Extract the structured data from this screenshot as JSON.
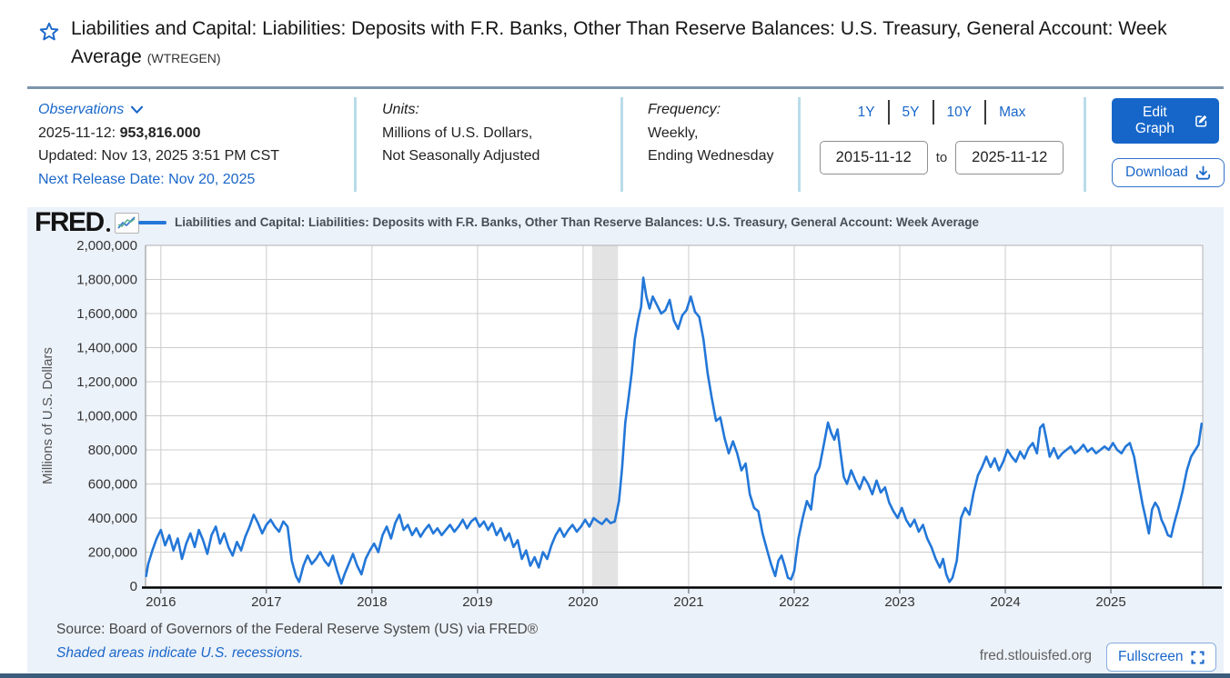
{
  "header": {
    "title": "Liabilities and Capital: Liabilities: Deposits with F.R. Banks, Other Than Reserve Balances: U.S. Treasury, General Account: Week Average",
    "series_id": "(WTREGEN)"
  },
  "meta": {
    "observations_label": "Observations",
    "latest_date": "2025-11-12:",
    "latest_value": "953,816.000",
    "updated": "Updated: Nov 13, 2025 3:51 PM CST",
    "next_release": "Next Release Date: Nov 20, 2025",
    "units_label": "Units:",
    "units_line1": "Millions of U.S. Dollars,",
    "units_line2": "Not Seasonally Adjusted",
    "frequency_label": "Frequency:",
    "frequency_line1": "Weekly,",
    "frequency_line2": "Ending Wednesday",
    "ranges": [
      "1Y",
      "5Y",
      "10Y",
      "Max"
    ],
    "date_from": "2015-11-12",
    "to_label": "to",
    "date_to": "2025-11-12",
    "edit_graph_label": "Edit Graph",
    "download_label": "Download"
  },
  "chart": {
    "brand": "FRED",
    "legend": "Liabilities and Capital: Liabilities: Deposits with F.R. Banks, Other Than Reserve Balances: U.S. Treasury, General Account: Week Average",
    "source": "Source: Board of Governors of the Federal Reserve System (US) via FRED®",
    "recession_note": "Shaded areas indicate U.S. recessions.",
    "watermark": "fred.stlouisfed.org",
    "fullscreen_label": "Fullscreen",
    "colors": {
      "accent": "#1a67c9",
      "line": "#2377d8",
      "recession_band": "#e3e3e3"
    }
  },
  "chart_data": {
    "type": "line",
    "title": "Liabilities and Capital: Liabilities: Deposits with F.R. Banks, Other Than Reserve Balances: U.S. Treasury, General Account: Week Average",
    "xlabel": "",
    "ylabel": "Millions of U.S. Dollars",
    "ylim": [
      0,
      2000000
    ],
    "xlim_years": [
      2015.855,
      2025.87
    ],
    "grid": true,
    "legend_position": "top",
    "y_ticks": [
      0,
      200000,
      400000,
      600000,
      800000,
      1000000,
      1200000,
      1400000,
      1600000,
      1800000,
      2000000
    ],
    "x_ticks": [
      2016,
      2017,
      2018,
      2019,
      2020,
      2021,
      2022,
      2023,
      2024,
      2025
    ],
    "recession_band_years": [
      2020.085,
      2020.33
    ],
    "points": [
      [
        2015.86,
        60000
      ],
      [
        2015.88,
        130000
      ],
      [
        2015.92,
        210000
      ],
      [
        2015.96,
        280000
      ],
      [
        2016.0,
        330000
      ],
      [
        2016.04,
        240000
      ],
      [
        2016.08,
        300000
      ],
      [
        2016.12,
        210000
      ],
      [
        2016.16,
        280000
      ],
      [
        2016.2,
        160000
      ],
      [
        2016.24,
        250000
      ],
      [
        2016.28,
        310000
      ],
      [
        2016.32,
        230000
      ],
      [
        2016.36,
        330000
      ],
      [
        2016.4,
        270000
      ],
      [
        2016.44,
        190000
      ],
      [
        2016.48,
        300000
      ],
      [
        2016.52,
        350000
      ],
      [
        2016.56,
        250000
      ],
      [
        2016.6,
        310000
      ],
      [
        2016.64,
        230000
      ],
      [
        2016.68,
        180000
      ],
      [
        2016.72,
        260000
      ],
      [
        2016.76,
        210000
      ],
      [
        2016.8,
        290000
      ],
      [
        2016.84,
        350000
      ],
      [
        2016.88,
        420000
      ],
      [
        2016.92,
        370000
      ],
      [
        2016.96,
        310000
      ],
      [
        2017.0,
        360000
      ],
      [
        2017.04,
        390000
      ],
      [
        2017.08,
        350000
      ],
      [
        2017.12,
        320000
      ],
      [
        2017.16,
        380000
      ],
      [
        2017.2,
        350000
      ],
      [
        2017.24,
        150000
      ],
      [
        2017.28,
        60000
      ],
      [
        2017.31,
        25000
      ],
      [
        2017.35,
        120000
      ],
      [
        2017.39,
        180000
      ],
      [
        2017.43,
        130000
      ],
      [
        2017.47,
        160000
      ],
      [
        2017.51,
        200000
      ],
      [
        2017.55,
        150000
      ],
      [
        2017.59,
        120000
      ],
      [
        2017.63,
        180000
      ],
      [
        2017.67,
        90000
      ],
      [
        2017.71,
        15000
      ],
      [
        2017.74,
        70000
      ],
      [
        2017.78,
        130000
      ],
      [
        2017.82,
        190000
      ],
      [
        2017.86,
        120000
      ],
      [
        2017.9,
        70000
      ],
      [
        2017.94,
        160000
      ],
      [
        2017.98,
        210000
      ],
      [
        2018.02,
        250000
      ],
      [
        2018.06,
        200000
      ],
      [
        2018.1,
        300000
      ],
      [
        2018.14,
        350000
      ],
      [
        2018.18,
        280000
      ],
      [
        2018.22,
        370000
      ],
      [
        2018.26,
        420000
      ],
      [
        2018.3,
        330000
      ],
      [
        2018.34,
        360000
      ],
      [
        2018.38,
        300000
      ],
      [
        2018.42,
        340000
      ],
      [
        2018.46,
        290000
      ],
      [
        2018.5,
        330000
      ],
      [
        2018.54,
        360000
      ],
      [
        2018.58,
        310000
      ],
      [
        2018.62,
        340000
      ],
      [
        2018.66,
        300000
      ],
      [
        2018.7,
        330000
      ],
      [
        2018.74,
        360000
      ],
      [
        2018.78,
        320000
      ],
      [
        2018.82,
        350000
      ],
      [
        2018.86,
        390000
      ],
      [
        2018.9,
        340000
      ],
      [
        2018.94,
        380000
      ],
      [
        2018.98,
        400000
      ],
      [
        2019.02,
        350000
      ],
      [
        2019.06,
        380000
      ],
      [
        2019.1,
        330000
      ],
      [
        2019.14,
        370000
      ],
      [
        2019.18,
        300000
      ],
      [
        2019.22,
        340000
      ],
      [
        2019.26,
        270000
      ],
      [
        2019.3,
        310000
      ],
      [
        2019.34,
        230000
      ],
      [
        2019.38,
        270000
      ],
      [
        2019.42,
        160000
      ],
      [
        2019.46,
        210000
      ],
      [
        2019.5,
        120000
      ],
      [
        2019.54,
        170000
      ],
      [
        2019.58,
        110000
      ],
      [
        2019.62,
        200000
      ],
      [
        2019.66,
        160000
      ],
      [
        2019.7,
        240000
      ],
      [
        2019.74,
        300000
      ],
      [
        2019.78,
        340000
      ],
      [
        2019.82,
        290000
      ],
      [
        2019.86,
        330000
      ],
      [
        2019.9,
        360000
      ],
      [
        2019.94,
        320000
      ],
      [
        2019.98,
        350000
      ],
      [
        2020.02,
        390000
      ],
      [
        2020.06,
        350000
      ],
      [
        2020.1,
        400000
      ],
      [
        2020.14,
        380000
      ],
      [
        2020.18,
        365000
      ],
      [
        2020.22,
        395000
      ],
      [
        2020.26,
        370000
      ],
      [
        2020.3,
        380000
      ],
      [
        2020.34,
        500000
      ],
      [
        2020.37,
        700000
      ],
      [
        2020.4,
        960000
      ],
      [
        2020.43,
        1100000
      ],
      [
        2020.46,
        1250000
      ],
      [
        2020.49,
        1450000
      ],
      [
        2020.52,
        1560000
      ],
      [
        2020.55,
        1640000
      ],
      [
        2020.57,
        1810000
      ],
      [
        2020.6,
        1700000
      ],
      [
        2020.63,
        1630000
      ],
      [
        2020.66,
        1700000
      ],
      [
        2020.7,
        1650000
      ],
      [
        2020.74,
        1600000
      ],
      [
        2020.78,
        1620000
      ],
      [
        2020.82,
        1680000
      ],
      [
        2020.86,
        1560000
      ],
      [
        2020.9,
        1510000
      ],
      [
        2020.94,
        1590000
      ],
      [
        2020.98,
        1620000
      ],
      [
        2021.02,
        1700000
      ],
      [
        2021.06,
        1610000
      ],
      [
        2021.1,
        1580000
      ],
      [
        2021.14,
        1450000
      ],
      [
        2021.18,
        1250000
      ],
      [
        2021.22,
        1100000
      ],
      [
        2021.26,
        970000
      ],
      [
        2021.3,
        990000
      ],
      [
        2021.34,
        870000
      ],
      [
        2021.38,
        780000
      ],
      [
        2021.42,
        850000
      ],
      [
        2021.46,
        780000
      ],
      [
        2021.5,
        680000
      ],
      [
        2021.54,
        720000
      ],
      [
        2021.58,
        540000
      ],
      [
        2021.62,
        460000
      ],
      [
        2021.66,
        440000
      ],
      [
        2021.7,
        310000
      ],
      [
        2021.74,
        220000
      ],
      [
        2021.78,
        130000
      ],
      [
        2021.82,
        60000
      ],
      [
        2021.85,
        150000
      ],
      [
        2021.88,
        180000
      ],
      [
        2021.91,
        120000
      ],
      [
        2021.94,
        50000
      ],
      [
        2021.97,
        40000
      ],
      [
        2022.0,
        90000
      ],
      [
        2022.04,
        280000
      ],
      [
        2022.08,
        400000
      ],
      [
        2022.12,
        500000
      ],
      [
        2022.16,
        450000
      ],
      [
        2022.2,
        650000
      ],
      [
        2022.24,
        700000
      ],
      [
        2022.28,
        830000
      ],
      [
        2022.32,
        960000
      ],
      [
        2022.35,
        900000
      ],
      [
        2022.38,
        860000
      ],
      [
        2022.41,
        920000
      ],
      [
        2022.44,
        780000
      ],
      [
        2022.47,
        640000
      ],
      [
        2022.5,
        600000
      ],
      [
        2022.54,
        680000
      ],
      [
        2022.58,
        620000
      ],
      [
        2022.62,
        570000
      ],
      [
        2022.66,
        640000
      ],
      [
        2022.7,
        600000
      ],
      [
        2022.74,
        540000
      ],
      [
        2022.78,
        620000
      ],
      [
        2022.82,
        550000
      ],
      [
        2022.86,
        580000
      ],
      [
        2022.9,
        490000
      ],
      [
        2022.94,
        440000
      ],
      [
        2022.98,
        400000
      ],
      [
        2023.02,
        460000
      ],
      [
        2023.06,
        390000
      ],
      [
        2023.1,
        350000
      ],
      [
        2023.14,
        390000
      ],
      [
        2023.18,
        320000
      ],
      [
        2023.22,
        360000
      ],
      [
        2023.26,
        280000
      ],
      [
        2023.3,
        230000
      ],
      [
        2023.34,
        160000
      ],
      [
        2023.38,
        110000
      ],
      [
        2023.41,
        160000
      ],
      [
        2023.44,
        70000
      ],
      [
        2023.47,
        25000
      ],
      [
        2023.5,
        50000
      ],
      [
        2023.54,
        150000
      ],
      [
        2023.58,
        400000
      ],
      [
        2023.62,
        460000
      ],
      [
        2023.66,
        420000
      ],
      [
        2023.7,
        550000
      ],
      [
        2023.74,
        650000
      ],
      [
        2023.78,
        700000
      ],
      [
        2023.82,
        760000
      ],
      [
        2023.86,
        700000
      ],
      [
        2023.9,
        750000
      ],
      [
        2023.94,
        680000
      ],
      [
        2023.98,
        730000
      ],
      [
        2024.02,
        800000
      ],
      [
        2024.06,
        760000
      ],
      [
        2024.1,
        730000
      ],
      [
        2024.14,
        790000
      ],
      [
        2024.18,
        750000
      ],
      [
        2024.22,
        810000
      ],
      [
        2024.26,
        840000
      ],
      [
        2024.3,
        780000
      ],
      [
        2024.33,
        930000
      ],
      [
        2024.36,
        950000
      ],
      [
        2024.39,
        860000
      ],
      [
        2024.42,
        760000
      ],
      [
        2024.46,
        810000
      ],
      [
        2024.5,
        750000
      ],
      [
        2024.54,
        780000
      ],
      [
        2024.58,
        800000
      ],
      [
        2024.62,
        820000
      ],
      [
        2024.66,
        780000
      ],
      [
        2024.7,
        800000
      ],
      [
        2024.74,
        830000
      ],
      [
        2024.78,
        790000
      ],
      [
        2024.82,
        810000
      ],
      [
        2024.86,
        780000
      ],
      [
        2024.9,
        800000
      ],
      [
        2024.94,
        820000
      ],
      [
        2024.98,
        800000
      ],
      [
        2025.02,
        840000
      ],
      [
        2025.06,
        800000
      ],
      [
        2025.1,
        780000
      ],
      [
        2025.14,
        820000
      ],
      [
        2025.18,
        840000
      ],
      [
        2025.22,
        760000
      ],
      [
        2025.26,
        620000
      ],
      [
        2025.3,
        480000
      ],
      [
        2025.33,
        400000
      ],
      [
        2025.36,
        310000
      ],
      [
        2025.39,
        450000
      ],
      [
        2025.42,
        490000
      ],
      [
        2025.45,
        460000
      ],
      [
        2025.48,
        390000
      ],
      [
        2025.51,
        350000
      ],
      [
        2025.54,
        300000
      ],
      [
        2025.57,
        290000
      ],
      [
        2025.6,
        370000
      ],
      [
        2025.64,
        460000
      ],
      [
        2025.68,
        560000
      ],
      [
        2025.72,
        680000
      ],
      [
        2025.76,
        760000
      ],
      [
        2025.8,
        800000
      ],
      [
        2025.83,
        830000
      ],
      [
        2025.86,
        953816
      ]
    ]
  }
}
